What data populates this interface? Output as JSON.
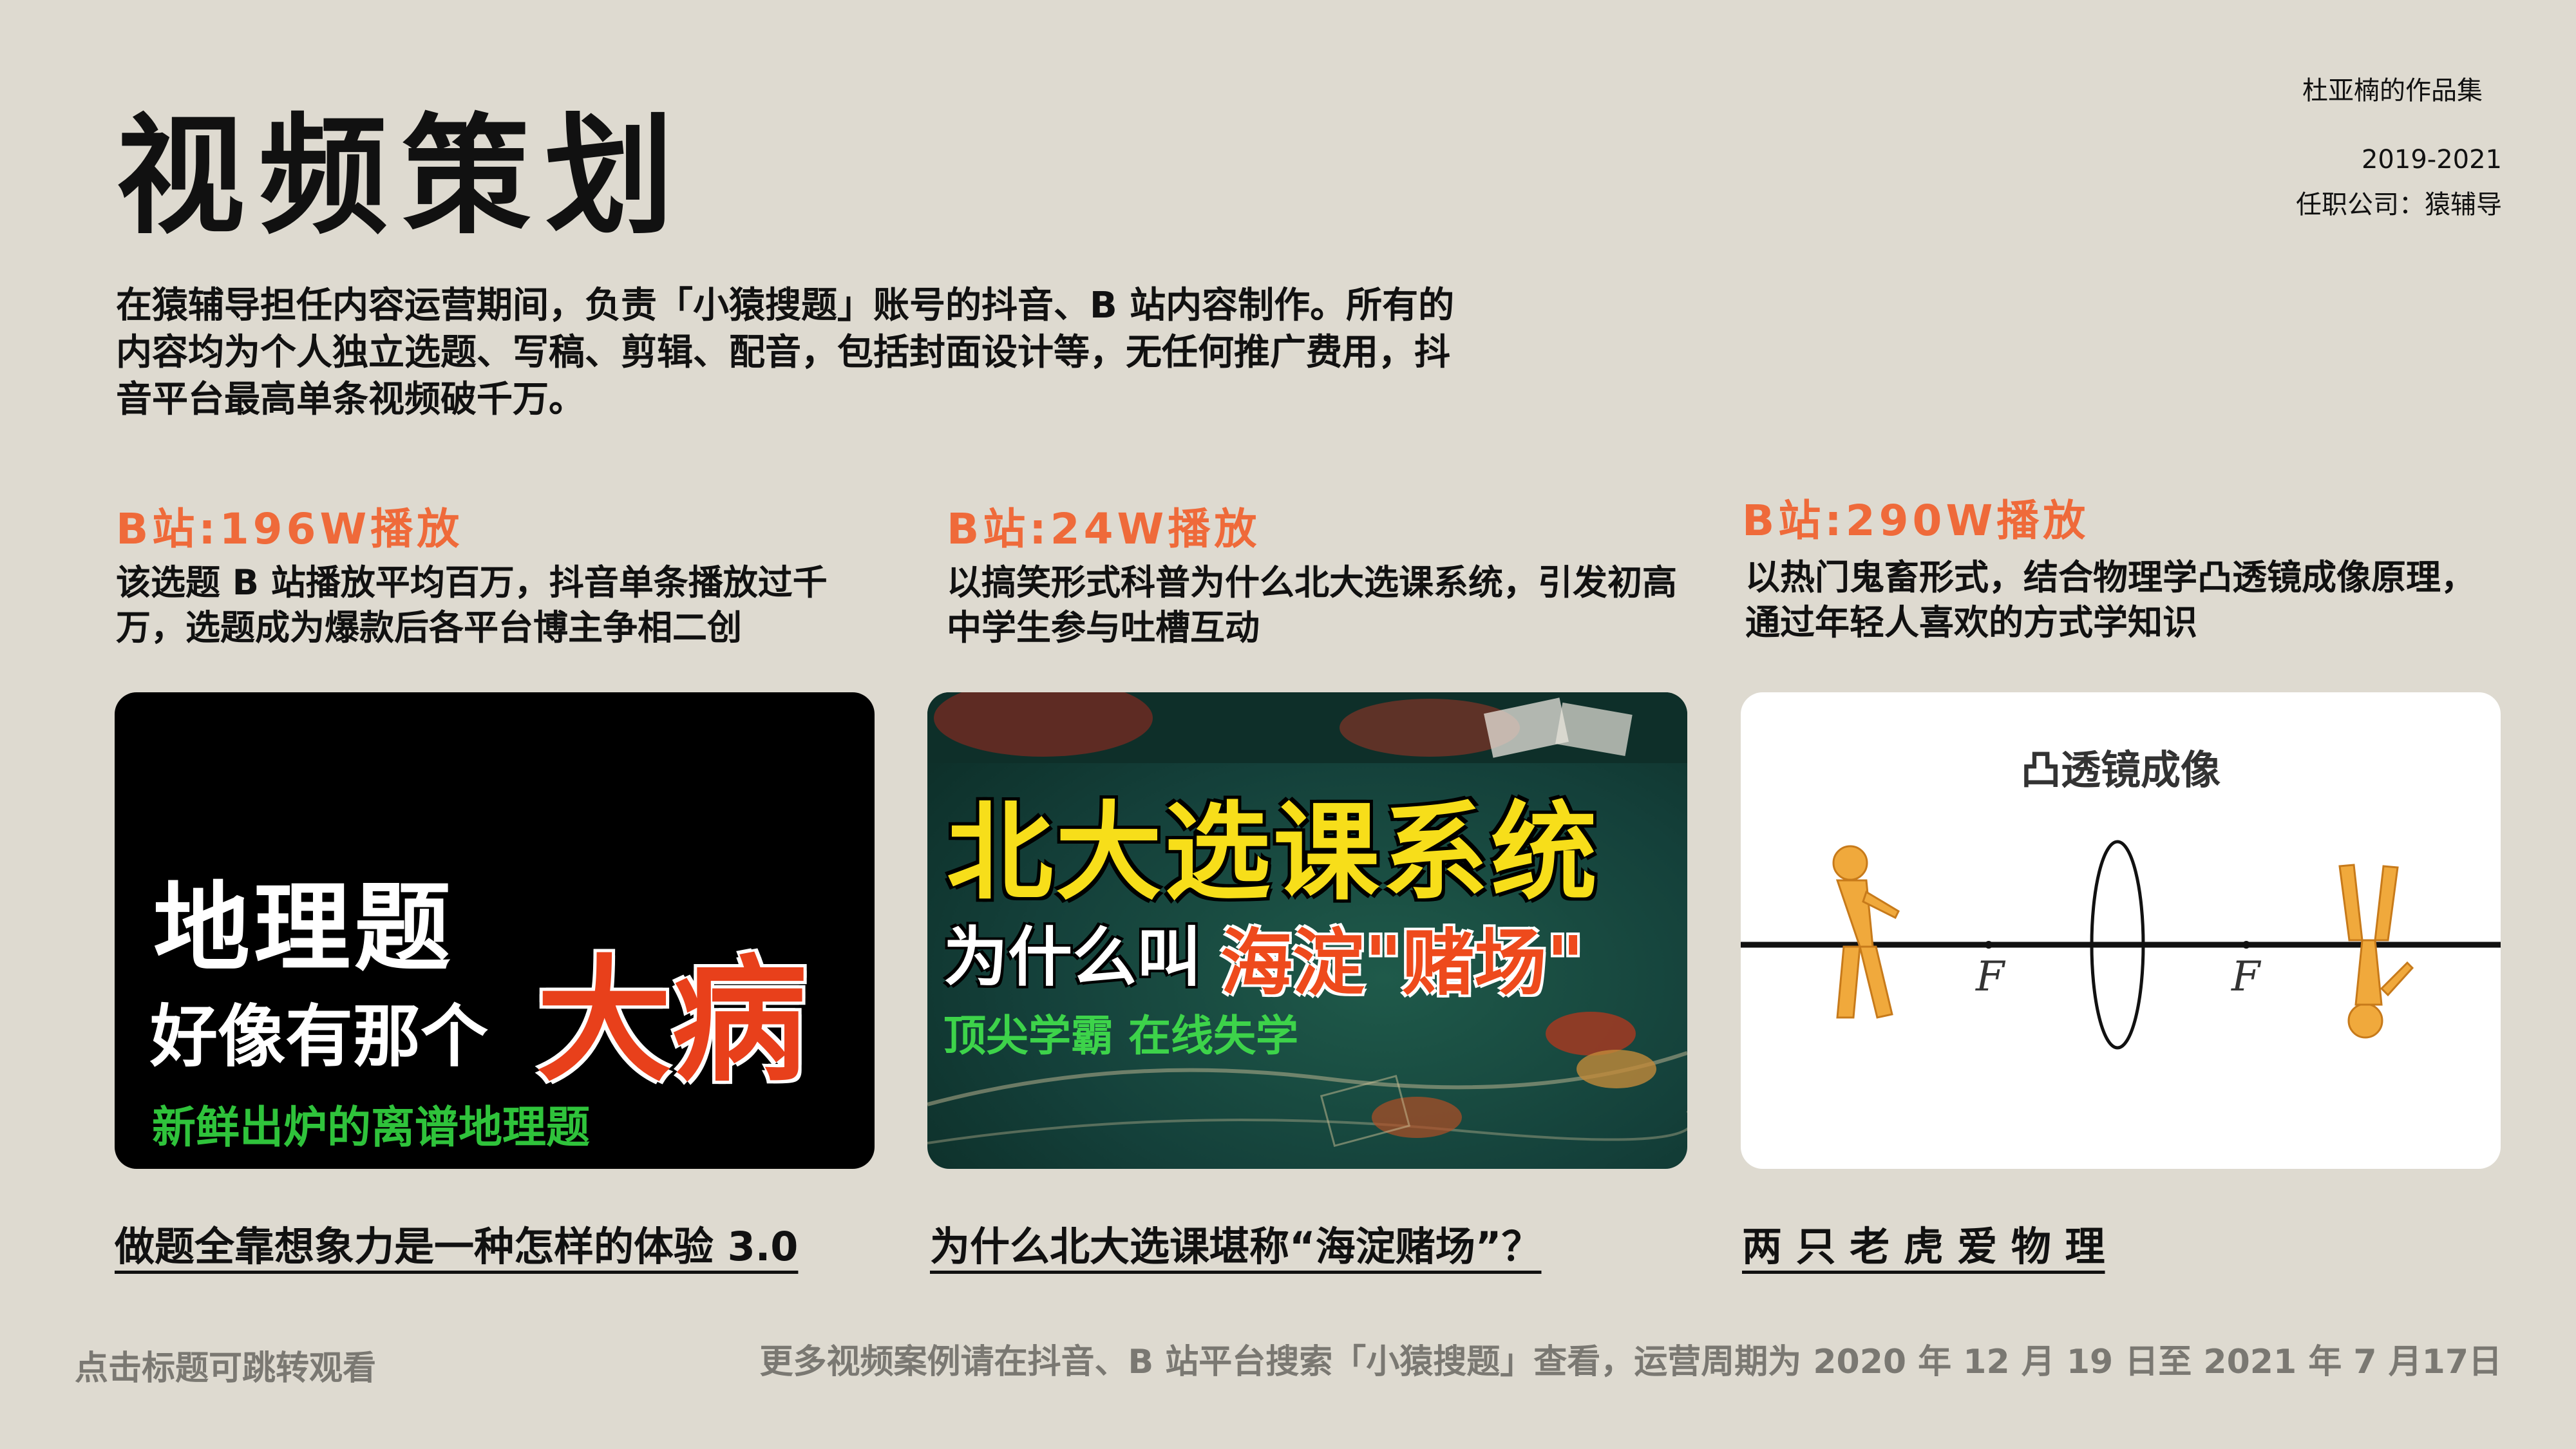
{
  "header": {
    "title": "视频策划",
    "brand": "杜亚楠的作品集",
    "years": "2019-2021",
    "company": "任职公司：猿辅导"
  },
  "intro": "在猿辅导担任内容运营期间，负责「小猿搜题」账号的抖音、B 站内容制作。所有的内容均为个人独立选题、写稿、剪辑、配音，包括封面设计等，无任何推广费用，抖音平台最高单条视频破千万。",
  "cases": [
    {
      "stat": "B站:196W播放",
      "desc": "该选题 B 站播放平均百万，抖音单条播放过千万，选题成为爆款后各平台博主争相二创",
      "title": "做题全靠想象力是一种怎样的体验 3.0",
      "cover": {
        "line1": "地理题",
        "line2": "好像有那个",
        "highlight": "大病",
        "sub": "新鲜出炉的离谱地理题"
      }
    },
    {
      "stat": "B站:24W播放",
      "desc": "以搞笑形式科普为什么北大选课系统，引发初高中学生参与吐槽互动",
      "title": "为什么北大选课堪称“海淀赌场”？",
      "cover": {
        "line1": "北大选课系统",
        "line2": "为什么叫",
        "highlight": "海淀\"赌场\"",
        "sub": "顶尖学霸 在线失学"
      }
    },
    {
      "stat": "B站:290W播放",
      "desc": "以热门鬼畜形式，结合物理学凸透镜成像原理，通过年轻人喜欢的方式学知识",
      "title": "两 只 老 虎 爱 物 理",
      "cover": {
        "title": "凸透镜成像",
        "focal_left": "F",
        "focal_right": "F"
      }
    }
  ],
  "hint": "点击标题可跳转观看",
  "footer": "更多视频案例请在抖音、B 站平台搜索「小猿搜题」查看，运营周期为 2020 年 12 月 19 日至 2021 年 7 月17日",
  "colors": {
    "background": "#dedad0",
    "accent": "#ef6a3a",
    "muted": "#7a7872"
  }
}
